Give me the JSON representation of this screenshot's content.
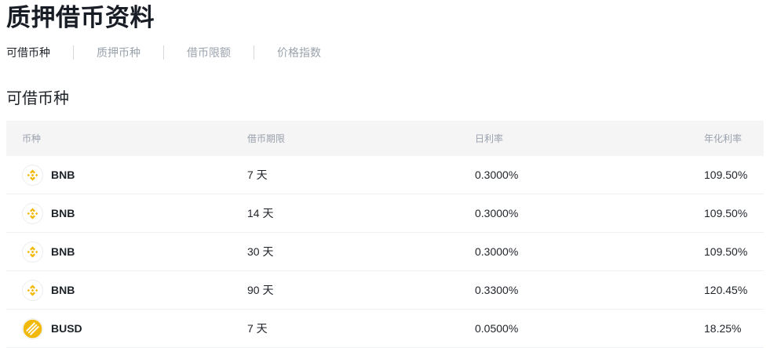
{
  "page": {
    "title": "质押借币资料"
  },
  "tabs": [
    {
      "label": "可借币种",
      "active": true
    },
    {
      "label": "质押币种",
      "active": false
    },
    {
      "label": "借币限额",
      "active": false
    },
    {
      "label": "价格指数",
      "active": false
    }
  ],
  "section": {
    "title": "可借币种"
  },
  "table": {
    "columns": [
      "币种",
      "借币期限",
      "日利率",
      "年化利率"
    ],
    "rows": [
      {
        "coin": "BNB",
        "icon": "bnb",
        "term": "7 天",
        "daily_rate": "0.3000%",
        "annual_rate": "109.50%"
      },
      {
        "coin": "BNB",
        "icon": "bnb",
        "term": "14 天",
        "daily_rate": "0.3000%",
        "annual_rate": "109.50%"
      },
      {
        "coin": "BNB",
        "icon": "bnb",
        "term": "30 天",
        "daily_rate": "0.3000%",
        "annual_rate": "109.50%"
      },
      {
        "coin": "BNB",
        "icon": "bnb",
        "term": "90 天",
        "daily_rate": "0.3300%",
        "annual_rate": "120.45%"
      },
      {
        "coin": "BUSD",
        "icon": "busd",
        "term": "7 天",
        "daily_rate": "0.0500%",
        "annual_rate": "18.25%"
      }
    ]
  },
  "colors": {
    "brand_gold": "#F0B90B",
    "text_dark": "#1E2329",
    "text_gray": "#9BA3AD",
    "header_bg": "#F5F5F5",
    "divider": "#EEF0F3"
  }
}
